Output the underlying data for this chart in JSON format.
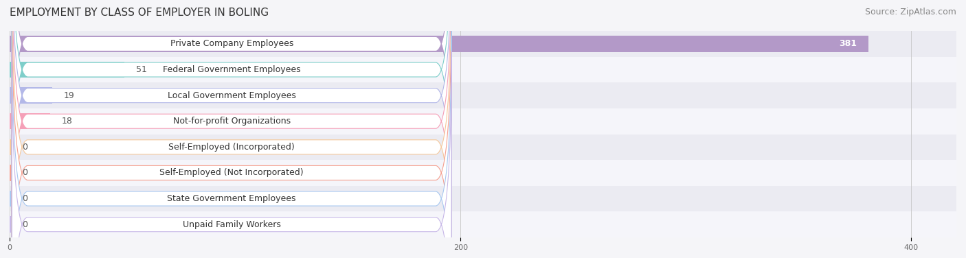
{
  "title": "EMPLOYMENT BY CLASS OF EMPLOYER IN BOLING",
  "source": "Source: ZipAtlas.com",
  "categories": [
    "Private Company Employees",
    "Federal Government Employees",
    "Local Government Employees",
    "Not-for-profit Organizations",
    "Self-Employed (Incorporated)",
    "Self-Employed (Not Incorporated)",
    "State Government Employees",
    "Unpaid Family Workers"
  ],
  "values": [
    381,
    51,
    19,
    18,
    0,
    0,
    0,
    0
  ],
  "bar_colors": [
    "#b399c8",
    "#7ececa",
    "#b3b8e8",
    "#f5a0b8",
    "#f5c89a",
    "#f5a090",
    "#a8c8f0",
    "#c8b8e8"
  ],
  "row_bg_colors": [
    "#ebebf2",
    "#f5f5fa"
  ],
  "xlim": [
    0,
    420
  ],
  "xticks": [
    0,
    200,
    400
  ],
  "title_fontsize": 11,
  "source_fontsize": 9,
  "label_fontsize": 9,
  "value_fontsize": 9,
  "background_color": "#f5f5f8"
}
